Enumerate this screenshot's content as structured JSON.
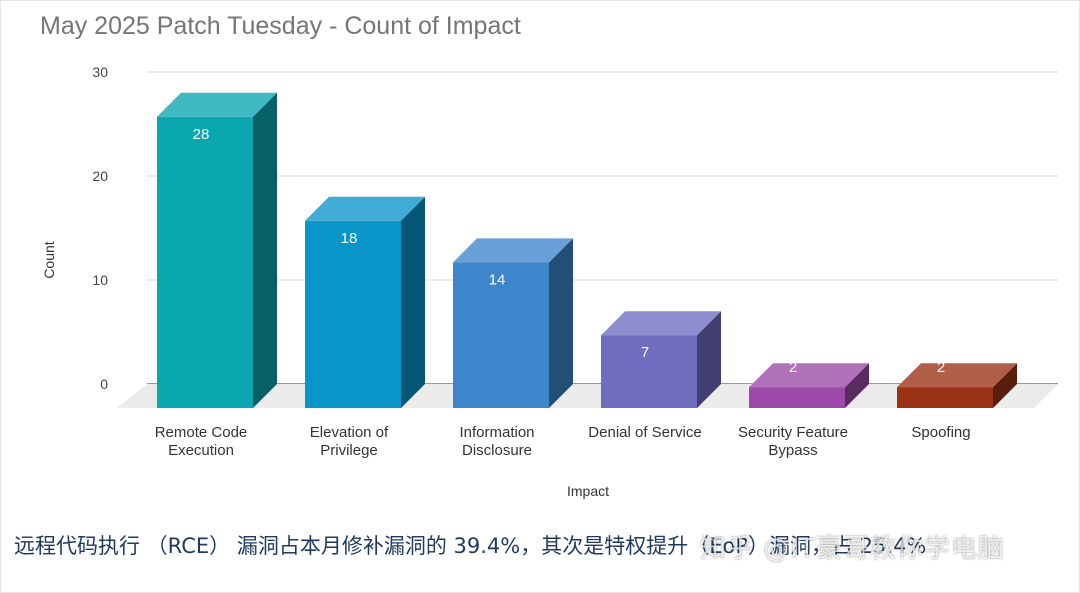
{
  "chart_data": {
    "type": "bar",
    "title": "May 2025 Patch Tuesday - Count of Impact",
    "xlabel": "Impact",
    "ylabel": "Count",
    "ylim": [
      0,
      30
    ],
    "yticks": [
      0,
      10,
      20,
      30
    ],
    "grid": true,
    "categories": [
      [
        "Remote Code",
        "Execution"
      ],
      [
        "Elevation of",
        "Privilege"
      ],
      [
        "Information",
        "Disclosure"
      ],
      [
        "Denial of Service"
      ],
      [
        "Security Feature",
        "Bypass"
      ],
      [
        "Spoofing"
      ]
    ],
    "values": [
      28,
      18,
      14,
      7,
      2,
      2
    ],
    "colors": [
      "#0aa7b1",
      "#0a95c9",
      "#3d86cc",
      "#6f6dc0",
      "#9b4aa8",
      "#9a3314"
    ]
  },
  "caption": "远程代码执行 （RCE） 漏洞占本月修补漏洞的 39.4%，其次是特权提升（EoP）漏洞，占 25.4%",
  "watermark": "知乎 @IT豪哥教你学电脑"
}
